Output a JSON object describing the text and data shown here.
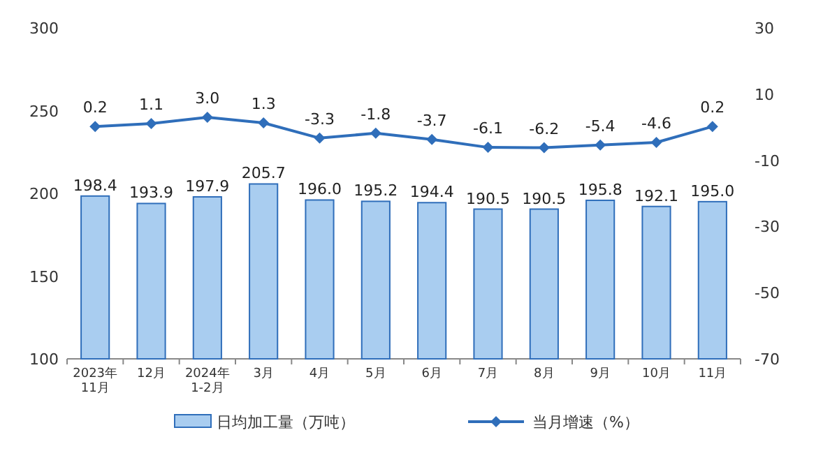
{
  "chart_data": {
    "type": "bar",
    "categories": [
      "2023年\n11月",
      "12月",
      "2024年\n1-2月",
      "3月",
      "4月",
      "5月",
      "6月",
      "7月",
      "8月",
      "9月",
      "10月",
      "11月"
    ],
    "series": [
      {
        "name": "日均加工量（万吨）",
        "color": "#a9cdf0",
        "values": [
          198.4,
          193.9,
          197.9,
          205.7,
          196.0,
          195.2,
          194.4,
          190.5,
          190.5,
          195.8,
          192.1,
          195.0
        ],
        "value_labels": [
          "198.4",
          "193.9",
          "197.9",
          "205.7",
          "196.0",
          "195.2",
          "194.4",
          "190.5",
          "190.5",
          "195.8",
          "192.1",
          "195.0"
        ]
      },
      {
        "name": "当月增速（%）",
        "type": "line",
        "axis": "y2",
        "marker": "diamond",
        "color": "#2f6eba",
        "values": [
          0.2,
          1.1,
          3.0,
          1.3,
          -3.3,
          -1.8,
          -3.7,
          -6.1,
          -6.2,
          -5.4,
          -4.6,
          0.2
        ],
        "value_labels": [
          "0.2",
          "1.1",
          "3.0",
          "1.3",
          "-3.3",
          "-1.8",
          "-3.7",
          "-6.1",
          "-6.2",
          "-5.4",
          "-4.6",
          "0.2"
        ]
      }
    ],
    "ylim": [
      100,
      300
    ],
    "yticks": [
      100,
      150,
      200,
      250,
      300
    ],
    "y2lim": [
      -70,
      30
    ],
    "y2ticks": [
      -70,
      -50,
      -30,
      -10,
      10,
      30
    ],
    "legend": "bottom"
  }
}
